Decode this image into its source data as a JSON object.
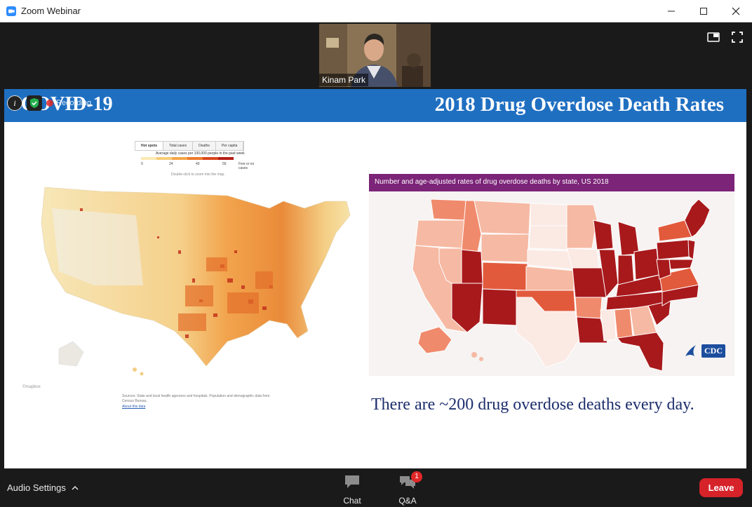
{
  "window": {
    "title": "Zoom Webinar"
  },
  "video": {
    "participant_name": "Kinam Park"
  },
  "share": {
    "left_title": "COVID-19",
    "right_title": "2018 Drug Overdose Death Rates",
    "recording_label": "Recording",
    "covid_map": {
      "tabs": [
        "Hot spots",
        "Total cases",
        "Deaths",
        "Per capita"
      ],
      "legend_caption": "Average daily cases per 100,000 people in the past week",
      "legend_ticks": [
        "0",
        "24",
        "40",
        "56"
      ],
      "legend_few": "Few or no cases",
      "hint": "Double-click to zoom into the map.",
      "source": "Sources: State and local health agencies and hospitals. Population and demographic data from Census Bureau.",
      "about_link": "About this data",
      "mapbox_label": "©mapbox",
      "legend_colors": [
        "#fbe9b4",
        "#f7cc78",
        "#f4a64a",
        "#ec7b2d",
        "#d9471e",
        "#b51d17"
      ]
    },
    "cdc_map": {
      "header": "Number and age-adjusted rates of drug overdose deaths by state, US 2018",
      "logo_text": "CDC",
      "colors": {
        "lowest": "#fbe9e3",
        "low": "#f6b9a3",
        "mid": "#f08a6c",
        "high": "#e25a3c",
        "highest": "#a8191c"
      }
    },
    "footer_text": "There are ~200 drug overdose deaths every day."
  },
  "toolbar": {
    "audio_settings": "Audio Settings",
    "chat_label": "Chat",
    "qa_label": "Q&A",
    "qa_badge": "1",
    "leave_label": "Leave"
  }
}
